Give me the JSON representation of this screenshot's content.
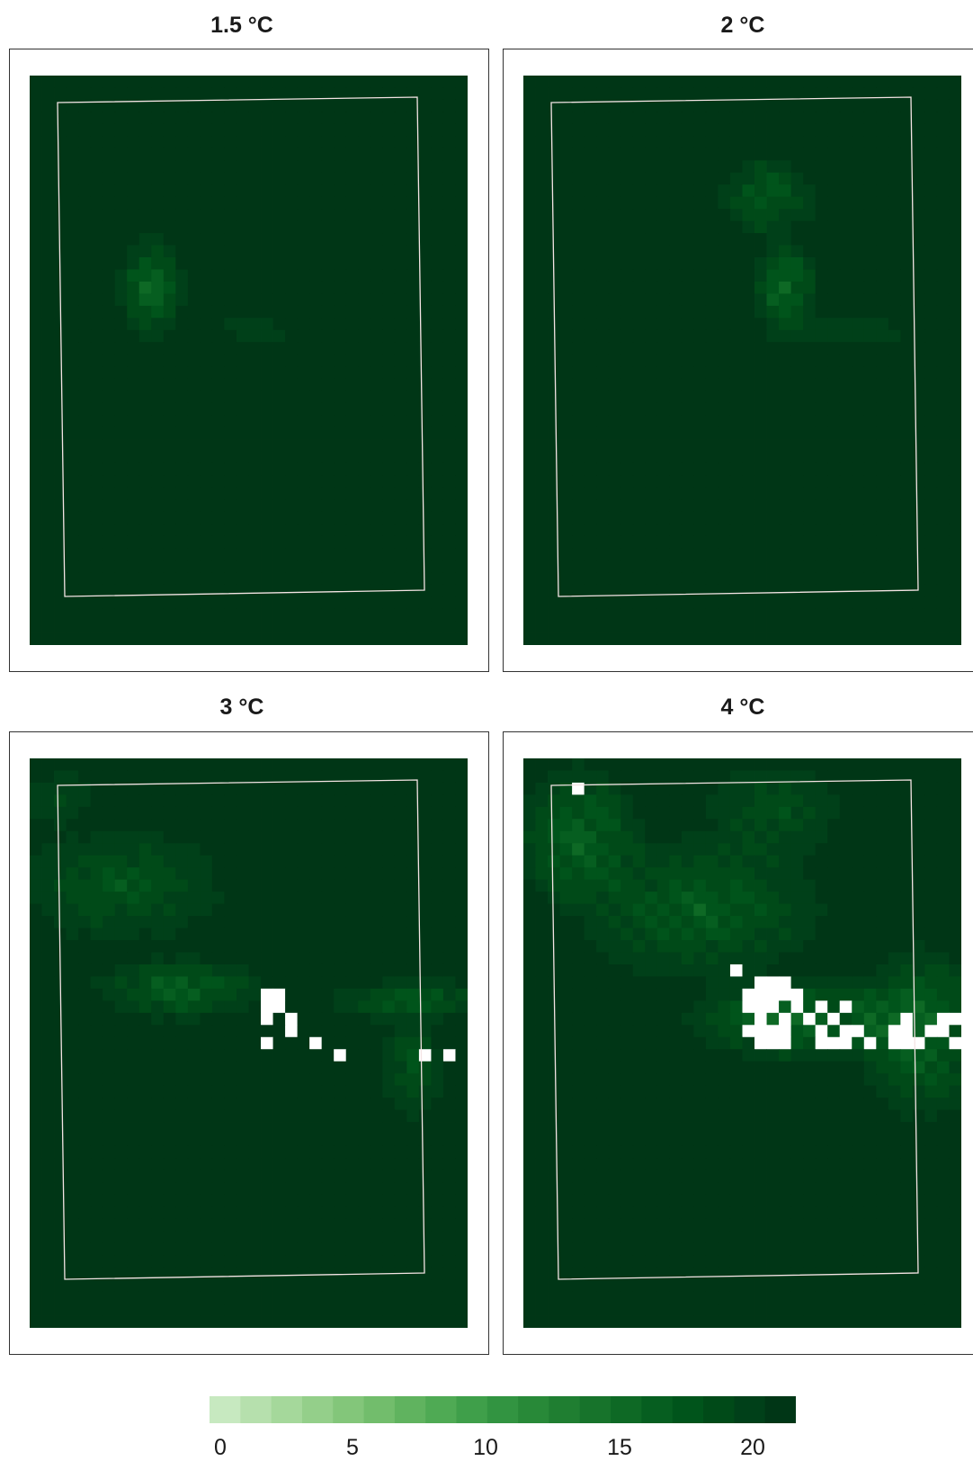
{
  "chart_data": {
    "type": "heatmap",
    "panels": [
      {
        "title": "1.5 °C",
        "hotspots": [
          {
            "cx": 9.5,
            "cy": 17,
            "rx": 3,
            "ry": 5,
            "drop": 8
          },
          {
            "cx": 18,
            "cy": 20.5,
            "rx": 6,
            "ry": 0.8,
            "drop": 4
          }
        ],
        "missing": []
      },
      {
        "title": "2 °C",
        "hotspots": [
          {
            "cx": 19.5,
            "cy": 9.5,
            "rx": 4.5,
            "ry": 4,
            "drop": 6
          },
          {
            "cx": 21,
            "cy": 17,
            "rx": 3,
            "ry": 4.5,
            "drop": 8
          },
          {
            "cx": 26,
            "cy": 20.5,
            "rx": 9,
            "ry": 0.8,
            "drop": 5
          }
        ],
        "missing": []
      },
      {
        "title": "3 °C",
        "hotspots": [
          {
            "cx": 7,
            "cy": 10,
            "rx": 10,
            "ry": 5.5,
            "drop": 5
          },
          {
            "cx": 2,
            "cy": 3,
            "rx": 4,
            "ry": 3,
            "drop": 3
          },
          {
            "cx": 12,
            "cy": 18.5,
            "rx": 8,
            "ry": 3,
            "drop": 7
          },
          {
            "cx": 31,
            "cy": 19.5,
            "rx": 8,
            "ry": 2,
            "drop": 6
          },
          {
            "cx": 31,
            "cy": 25,
            "rx": 3,
            "ry": 5,
            "drop": 5
          }
        ],
        "missing": [
          [
            19,
            19
          ],
          [
            20,
            19
          ],
          [
            19,
            20
          ],
          [
            20,
            20
          ],
          [
            19,
            21
          ],
          [
            21,
            21
          ],
          [
            21,
            22
          ],
          [
            19,
            23
          ],
          [
            23,
            23
          ],
          [
            25,
            24
          ],
          [
            32,
            24
          ],
          [
            34,
            24
          ]
        ]
      },
      {
        "title": "4 °C",
        "hotspots": [
          {
            "cx": 4,
            "cy": 6,
            "rx": 6,
            "ry": 7,
            "drop": 7
          },
          {
            "cx": 14,
            "cy": 12,
            "rx": 12,
            "ry": 7,
            "drop": 6
          },
          {
            "cx": 22,
            "cy": 21,
            "rx": 10,
            "ry": 4,
            "drop": 9
          },
          {
            "cx": 32,
            "cy": 22,
            "rx": 6,
            "ry": 8,
            "drop": 8
          },
          {
            "cx": 20,
            "cy": 4,
            "rx": 7,
            "ry": 5,
            "drop": 4
          }
        ],
        "missing": [
          [
            4,
            2
          ],
          [
            17,
            17
          ],
          [
            19,
            18
          ],
          [
            20,
            18
          ],
          [
            21,
            18
          ],
          [
            18,
            19
          ],
          [
            19,
            19
          ],
          [
            20,
            19
          ],
          [
            21,
            19
          ],
          [
            22,
            19
          ],
          [
            18,
            20
          ],
          [
            19,
            20
          ],
          [
            20,
            20
          ],
          [
            22,
            20
          ],
          [
            24,
            20
          ],
          [
            26,
            20
          ],
          [
            19,
            21
          ],
          [
            21,
            21
          ],
          [
            23,
            21
          ],
          [
            25,
            21
          ],
          [
            31,
            21
          ],
          [
            34,
            21
          ],
          [
            35,
            21
          ],
          [
            18,
            22
          ],
          [
            19,
            22
          ],
          [
            20,
            22
          ],
          [
            21,
            22
          ],
          [
            24,
            22
          ],
          [
            26,
            22
          ],
          [
            27,
            22
          ],
          [
            30,
            22
          ],
          [
            31,
            22
          ],
          [
            33,
            22
          ],
          [
            34,
            22
          ],
          [
            19,
            23
          ],
          [
            20,
            23
          ],
          [
            21,
            23
          ],
          [
            24,
            23
          ],
          [
            25,
            23
          ],
          [
            26,
            23
          ],
          [
            28,
            23
          ],
          [
            30,
            23
          ],
          [
            31,
            23
          ],
          [
            32,
            23
          ],
          [
            35,
            23
          ]
        ]
      }
    ],
    "colorbar": {
      "ticks": [
        0,
        5,
        10,
        15,
        20
      ],
      "range": [
        0,
        22.5
      ],
      "colors": [
        "#c7e9c0",
        "#b6e0ad",
        "#a5d89b",
        "#94cf8a",
        "#83c67a",
        "#72bd6c",
        "#60b35f",
        "#4faa54",
        "#3f9f4a",
        "#329441",
        "#288938",
        "#1f7e31",
        "#17732b",
        "#0e6925",
        "#065e20",
        "#00541b",
        "#004a18",
        "#004019",
        "#003616"
      ]
    },
    "grid": {
      "cols": 36,
      "rows": 47
    }
  }
}
